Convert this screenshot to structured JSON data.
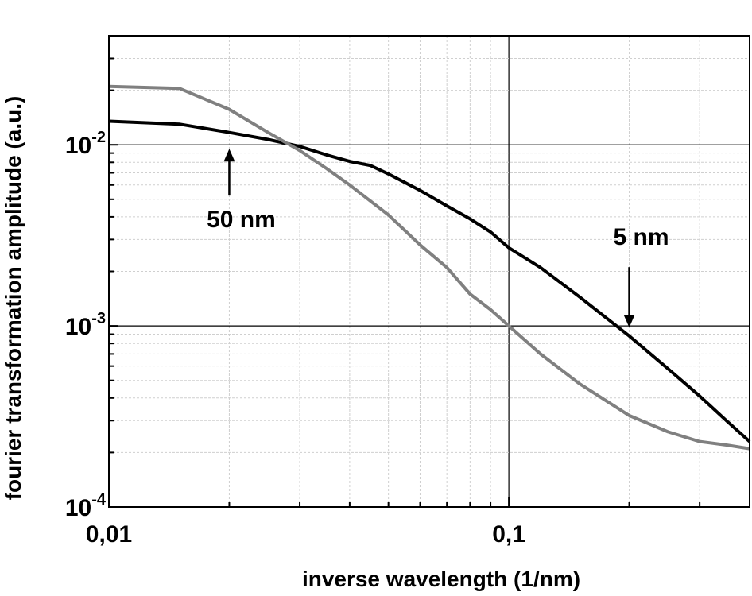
{
  "chart_data": {
    "type": "line",
    "xlabel": "inverse wavelength (1/nm)",
    "ylabel": "fourier transformation amplitude (a.u.)",
    "x_scale": "log",
    "y_scale": "log",
    "xlim": [
      0.01,
      0.4
    ],
    "ylim": [
      0.0001,
      0.04
    ],
    "grid": true,
    "x_ticks": [
      {
        "value": 0.01,
        "label": "0,01"
      },
      {
        "value": 0.1,
        "label": "0,1"
      }
    ],
    "y_ticks": [
      {
        "value": 0.0001,
        "base": "10",
        "exp": "-4"
      },
      {
        "value": 0.001,
        "base": "10",
        "exp": "-3"
      },
      {
        "value": 0.01,
        "base": "10",
        "exp": "-2"
      }
    ],
    "series": [
      {
        "color": "#000000",
        "x": [
          0.01,
          0.015,
          0.02,
          0.025,
          0.03,
          0.035,
          0.04,
          0.045,
          0.05,
          0.06,
          0.07,
          0.08,
          0.09,
          0.1,
          0.12,
          0.15,
          0.2,
          0.25,
          0.3,
          0.35,
          0.4
        ],
        "y": [
          0.0135,
          0.013,
          0.0117,
          0.0107,
          0.0098,
          0.0088,
          0.0081,
          0.0077,
          0.0069,
          0.0056,
          0.0046,
          0.0039,
          0.0033,
          0.0027,
          0.0021,
          0.00145,
          0.00088,
          0.00058,
          0.00041,
          0.0003,
          0.00023
        ]
      },
      {
        "color": "#808080",
        "x": [
          0.01,
          0.015,
          0.02,
          0.025,
          0.03,
          0.035,
          0.04,
          0.05,
          0.06,
          0.07,
          0.08,
          0.09,
          0.1,
          0.12,
          0.15,
          0.2,
          0.25,
          0.3,
          0.35,
          0.4
        ],
        "y": [
          0.021,
          0.0205,
          0.0157,
          0.0117,
          0.0093,
          0.0074,
          0.006,
          0.0041,
          0.0028,
          0.0021,
          0.0015,
          0.00123,
          0.001,
          0.0007,
          0.00048,
          0.00032,
          0.00026,
          0.00023,
          0.00022,
          0.00021
        ]
      }
    ],
    "annotations": [
      {
        "text": "50 nm",
        "x": 0.02,
        "y": 0.0035,
        "arrow_to_y": 0.0095
      },
      {
        "text": "5 nm",
        "x": 0.2,
        "y": 0.0028,
        "arrow_to_y": 0.00098
      }
    ]
  }
}
